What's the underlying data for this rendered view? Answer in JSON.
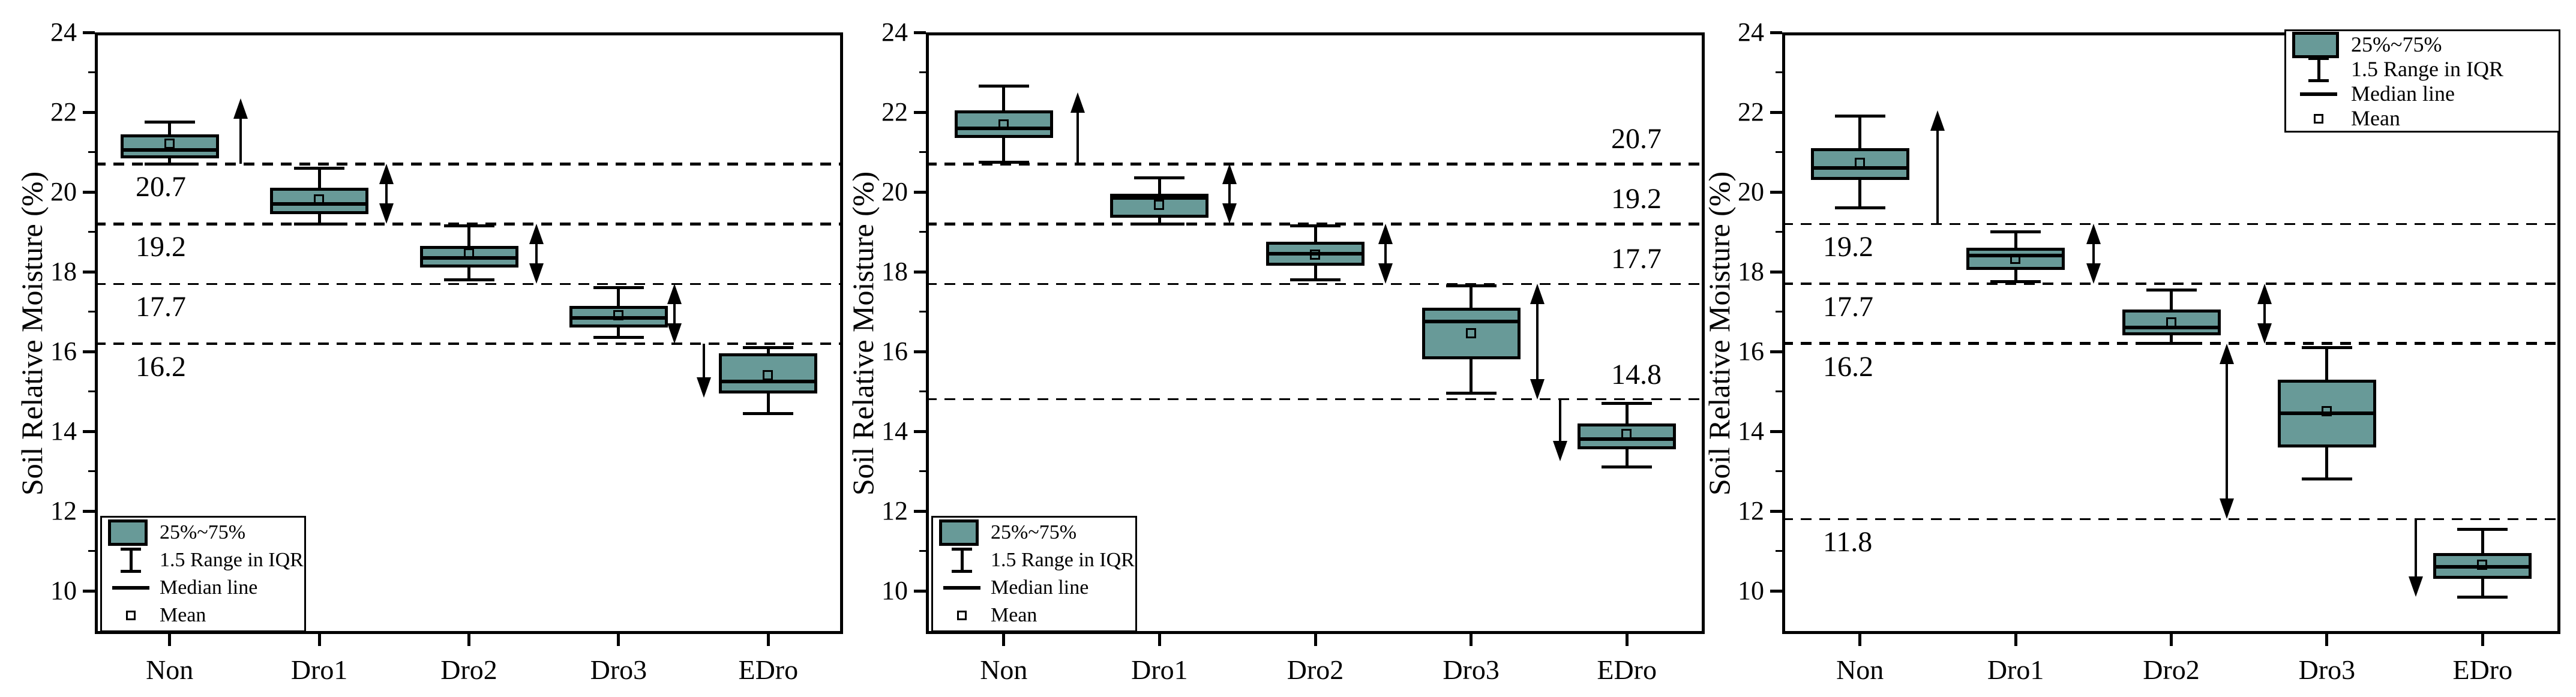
{
  "colors": {
    "box_fill": "#689a98",
    "stroke": "#000000",
    "background": "#ffffff"
  },
  "chart_data": [
    {
      "type": "box",
      "panel": "left",
      "ylabel": "Soil Relative Moisture (%)",
      "ylim": [
        8.92,
        24
      ],
      "yticks": [
        10,
        12,
        14,
        16,
        18,
        20,
        22,
        24
      ],
      "categories": [
        "Non",
        "Dro1",
        "Dro2",
        "Dro3",
        "EDro"
      ],
      "legend": {
        "position": "bottom-left",
        "items": [
          "25%~75%",
          "1.5 Range in IQR",
          "Median line",
          "Mean"
        ]
      },
      "reference_lines": [
        {
          "value": 20.7,
          "label": "20.7",
          "label_pos": "below-left",
          "weight": 5
        },
        {
          "value": 19.2,
          "label": "19.2",
          "label_pos": "below-left",
          "weight": 5
        },
        {
          "value": 17.7,
          "label": "17.7",
          "label_pos": "below-left",
          "weight": 3
        },
        {
          "value": 16.2,
          "label": "16.2",
          "label_pos": "below-left",
          "weight": 4.5
        }
      ],
      "boxes": [
        {
          "category": "Non",
          "whisker_low": 20.7,
          "q1": 20.85,
          "median": 21.05,
          "mean": 21.2,
          "q3": 21.45,
          "whisker_high": 21.75
        },
        {
          "category": "Dro1",
          "whisker_low": 19.2,
          "q1": 19.45,
          "median": 19.7,
          "mean": 19.8,
          "q3": 20.1,
          "whisker_high": 20.6
        },
        {
          "category": "Dro2",
          "whisker_low": 17.8,
          "q1": 18.1,
          "median": 18.35,
          "mean": 18.45,
          "q3": 18.65,
          "whisker_high": 19.15
        },
        {
          "category": "Dro3",
          "whisker_low": 16.35,
          "q1": 16.6,
          "median": 16.85,
          "mean": 16.9,
          "q3": 17.15,
          "whisker_high": 17.6
        },
        {
          "category": "EDro",
          "whisker_low": 14.45,
          "q1": 14.95,
          "median": 15.25,
          "mean": 15.4,
          "q3": 15.95,
          "whisker_high": 16.1
        }
      ],
      "arrows": [
        {
          "style": "up",
          "x_frac": 0.195,
          "top": 22.35,
          "bottom": 20.7
        },
        {
          "style": "double",
          "x_frac": 0.39,
          "top": 20.7,
          "bottom": 19.2
        },
        {
          "style": "double",
          "x_frac": 0.59,
          "top": 19.2,
          "bottom": 17.7
        },
        {
          "style": "double",
          "x_frac": 0.775,
          "top": 17.7,
          "bottom": 16.2
        },
        {
          "style": "down",
          "x_frac": 0.814,
          "top": 16.2,
          "bottom": 14.85
        }
      ]
    },
    {
      "type": "box",
      "panel": "middle",
      "ylabel": "Soil Relative Moisture (%)",
      "ylim": [
        8.92,
        24
      ],
      "yticks": [
        10,
        12,
        14,
        16,
        18,
        20,
        22,
        24
      ],
      "categories": [
        "Non",
        "Dro1",
        "Dro2",
        "Dro3",
        "EDro"
      ],
      "legend": {
        "position": "bottom-left",
        "items": [
          "25%~75%",
          "1.5 Range in IQR",
          "Median line",
          "Mean"
        ]
      },
      "reference_lines": [
        {
          "value": 20.7,
          "label": "20.7",
          "label_pos": "above-right",
          "weight": 5
        },
        {
          "value": 19.2,
          "label": "19.2",
          "label_pos": "above-right",
          "weight": 5
        },
        {
          "value": 17.7,
          "label": "17.7",
          "label_pos": "above-right",
          "weight": 3
        },
        {
          "value": 14.8,
          "label": "14.8",
          "label_pos": "above-right",
          "weight": 3
        }
      ],
      "boxes": [
        {
          "category": "Non",
          "whisker_low": 20.75,
          "q1": 21.35,
          "median": 21.6,
          "mean": 21.68,
          "q3": 22.05,
          "whisker_high": 22.65
        },
        {
          "category": "Dro1",
          "whisker_low": 19.2,
          "q1": 19.35,
          "median": 19.85,
          "mean": 19.67,
          "q3": 19.95,
          "whisker_high": 20.35
        },
        {
          "category": "Dro2",
          "whisker_low": 17.8,
          "q1": 18.15,
          "median": 18.45,
          "mean": 18.42,
          "q3": 18.75,
          "whisker_high": 19.15
        },
        {
          "category": "Dro3",
          "whisker_low": 14.95,
          "q1": 15.8,
          "median": 16.75,
          "mean": 16.45,
          "q3": 17.1,
          "whisker_high": 17.65
        },
        {
          "category": "EDro",
          "whisker_low": 13.1,
          "q1": 13.55,
          "median": 13.8,
          "mean": 13.92,
          "q3": 14.2,
          "whisker_high": 14.7
        }
      ],
      "arrows": [
        {
          "style": "up",
          "x_frac": 0.195,
          "top": 22.5,
          "bottom": 20.7
        },
        {
          "style": "double",
          "x_frac": 0.39,
          "top": 20.7,
          "bottom": 19.2
        },
        {
          "style": "double",
          "x_frac": 0.59,
          "top": 19.2,
          "bottom": 17.7
        },
        {
          "style": "double",
          "x_frac": 0.785,
          "top": 17.7,
          "bottom": 14.8
        },
        {
          "style": "down",
          "x_frac": 0.814,
          "top": 14.8,
          "bottom": 13.25
        }
      ]
    },
    {
      "type": "box",
      "panel": "right",
      "ylabel": "Soil Relative Moisture (%)",
      "ylim": [
        8.92,
        24
      ],
      "yticks": [
        10,
        12,
        14,
        16,
        18,
        20,
        22,
        24
      ],
      "categories": [
        "Non",
        "Dro1",
        "Dro2",
        "Dro3",
        "EDro"
      ],
      "legend": {
        "position": "top-right",
        "items": [
          "25%~75%",
          "1.5 Range in IQR",
          "Median line",
          "Mean"
        ]
      },
      "reference_lines": [
        {
          "value": 19.2,
          "label": "19.2",
          "label_pos": "below-left",
          "weight": 3.5
        },
        {
          "value": 17.7,
          "label": "17.7",
          "label_pos": "below-left",
          "weight": 3.5
        },
        {
          "value": 16.2,
          "label": "16.2",
          "label_pos": "below-left",
          "weight": 5
        },
        {
          "value": 11.8,
          "label": "11.8",
          "label_pos": "below-left",
          "weight": 3.5
        }
      ],
      "boxes": [
        {
          "category": "Non",
          "whisker_low": 19.6,
          "q1": 20.3,
          "median": 20.6,
          "mean": 20.72,
          "q3": 21.1,
          "whisker_high": 21.9
        },
        {
          "category": "Dro1",
          "whisker_low": 17.75,
          "q1": 18.05,
          "median": 18.4,
          "mean": 18.32,
          "q3": 18.6,
          "whisker_high": 19.0
        },
        {
          "category": "Dro2",
          "whisker_low": 16.2,
          "q1": 16.4,
          "median": 16.6,
          "mean": 16.72,
          "q3": 17.05,
          "whisker_high": 17.55
        },
        {
          "category": "Dro3",
          "whisker_low": 12.8,
          "q1": 13.6,
          "median": 14.45,
          "mean": 14.5,
          "q3": 15.3,
          "whisker_high": 16.1
        },
        {
          "category": "EDro",
          "whisker_low": 9.85,
          "q1": 10.3,
          "median": 10.6,
          "mean": 10.65,
          "q3": 10.95,
          "whisker_high": 11.55
        }
      ],
      "arrows": [
        {
          "style": "up",
          "x_frac": 0.2,
          "top": 22.05,
          "bottom": 19.2
        },
        {
          "style": "double",
          "x_frac": 0.4,
          "top": 19.2,
          "bottom": 17.7
        },
        {
          "style": "double",
          "x_frac": 0.62,
          "top": 17.7,
          "bottom": 16.2
        },
        {
          "style": "double",
          "x_frac": 0.571,
          "top": 16.2,
          "bottom": 11.8
        },
        {
          "style": "down",
          "x_frac": 0.814,
          "top": 11.8,
          "bottom": 9.85
        }
      ]
    }
  ]
}
